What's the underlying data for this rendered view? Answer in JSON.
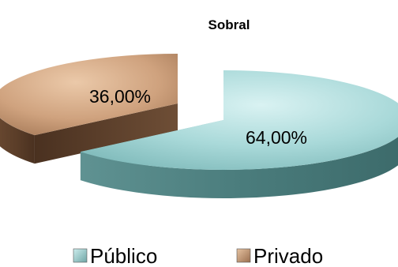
{
  "chart_data": {
    "type": "pie",
    "title": "Sobral",
    "categories": [
      "Público",
      "Privado"
    ],
    "values": [
      64.0,
      36.0
    ],
    "data_labels": [
      "64,00%",
      "36,00%"
    ],
    "colors": [
      "#a9d9d9",
      "#cfa27e"
    ],
    "exploded": true,
    "three_d": true,
    "legend_position": "bottom"
  }
}
